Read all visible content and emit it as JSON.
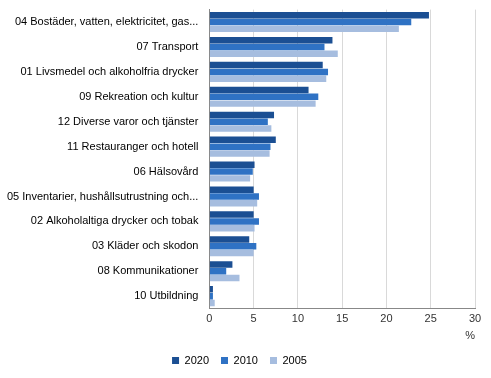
{
  "chart_data": {
    "type": "bar",
    "orientation": "horizontal",
    "categories": [
      "04 Bostäder, vatten, elektricitet, gas...",
      "07 Transport",
      "01 Livsmedel och alkoholfria drycker",
      "09 Rekreation och kultur",
      "12 Diverse varor och tjänster",
      "11 Restauranger och hotell",
      "06 Hälsovård",
      "05 Inventarier, hushållsutrustning och...",
      "02 Alkoholaltiga drycker och tobak",
      "03 Kläder och skodon",
      "08 Kommunikationer",
      "10 Utbildning"
    ],
    "series": [
      {
        "name": "2020",
        "color": "#1b4f93",
        "values": [
          24.8,
          13.9,
          12.8,
          11.2,
          7.3,
          7.5,
          5.1,
          5.0,
          5.0,
          4.5,
          2.6,
          0.4
        ]
      },
      {
        "name": "2010",
        "color": "#2f72c4",
        "values": [
          22.8,
          13.0,
          13.4,
          12.3,
          6.6,
          6.9,
          4.9,
          5.6,
          5.6,
          5.3,
          1.9,
          0.4
        ]
      },
      {
        "name": "2005",
        "color": "#a6bddf",
        "values": [
          21.4,
          14.5,
          13.2,
          12.0,
          7.0,
          6.8,
          4.6,
          5.4,
          5.1,
          5.0,
          3.4,
          0.6
        ]
      }
    ],
    "xlabel": "%",
    "xlim": [
      0,
      30
    ],
    "xticks": [
      0,
      5,
      10,
      15,
      20,
      25,
      30
    ],
    "grid": true,
    "legend": "bottom"
  }
}
